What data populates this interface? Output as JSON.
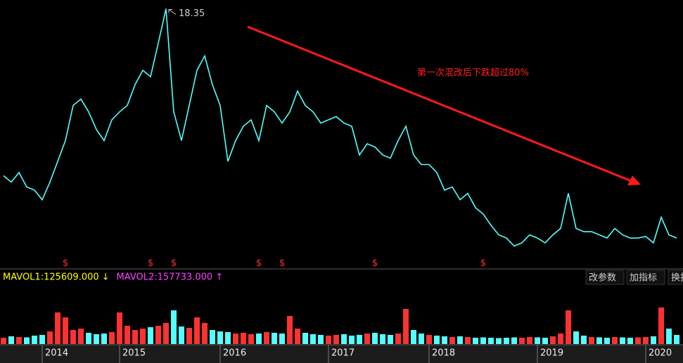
{
  "chart_data": [
    {
      "type": "line",
      "color": "#54ffff",
      "values": [
        7.9,
        7.5,
        8.1,
        7.2,
        7.0,
        6.4,
        7.5,
        8.8,
        10.1,
        12.3,
        12.7,
        11.9,
        10.8,
        10.1,
        11.4,
        11.9,
        12.3,
        13.6,
        14.5,
        14.1,
        16.2,
        18.35,
        11.9,
        10.1,
        12.3,
        14.5,
        15.4,
        13.6,
        12.3,
        8.8,
        10.1,
        11.0,
        11.4,
        10.1,
        12.3,
        11.9,
        11.2,
        11.9,
        13.2,
        12.3,
        11.9,
        11.2,
        11.4,
        11.6,
        11.2,
        11.0,
        9.2,
        9.9,
        9.7,
        9.2,
        9.0,
        10.1,
        11.0,
        9.2,
        8.6,
        8.6,
        8.1,
        7.0,
        7.2,
        6.4,
        6.8,
        5.9,
        5.5,
        4.8,
        4.2,
        4.0,
        3.5,
        3.7,
        4.2,
        4.0,
        3.7,
        4.2,
        4.6,
        6.8,
        4.6,
        4.4,
        4.4,
        4.2,
        4.0,
        4.6,
        4.2,
        4.0,
        4.0,
        4.1,
        3.7,
        5.3,
        4.2,
        4.0
      ],
      "ylim": [
        2.2,
        18.9
      ],
      "annotation": "第一次混改后下跌超过80%",
      "annotation_color": "#ff2020",
      "markers": [
        {
          "label": "$",
          "at": 8
        },
        {
          "label": "$",
          "at": 19
        },
        {
          "label": "$",
          "at": 22
        },
        {
          "label": "$",
          "at": 33
        },
        {
          "label": "$",
          "at": 36
        },
        {
          "label": "$",
          "at": 48
        },
        {
          "label": "$",
          "at": 62
        }
      ]
    },
    {
      "type": "bar",
      "up_color": "#ff3232",
      "down_color": "#54ffff",
      "categories": [
        null,
        null,
        null,
        null,
        null,
        "2014",
        null,
        null,
        null,
        null,
        null,
        null,
        null,
        null,
        null,
        "2015",
        null,
        null,
        null,
        null,
        null,
        null,
        null,
        null,
        null,
        null,
        null,
        null,
        "2016",
        null,
        null,
        null,
        null,
        null,
        null,
        null,
        null,
        null,
        null,
        null,
        null,
        null,
        "2017",
        null,
        null,
        null,
        null,
        null,
        null,
        null,
        null,
        null,
        null,
        null,
        null,
        "2018",
        null,
        null,
        null,
        null,
        null,
        null,
        null,
        null,
        null,
        null,
        null,
        null,
        null,
        "2019",
        null,
        null,
        null,
        null,
        null,
        null,
        null,
        null,
        null,
        null,
        null,
        null,
        null,
        "2020",
        null,
        null,
        null,
        null
      ],
      "values": [
        90000,
        110000,
        100000,
        95000,
        120000,
        130000,
        180000,
        450000,
        380000,
        200000,
        220000,
        160000,
        140000,
        150000,
        170000,
        450000,
        260000,
        200000,
        220000,
        240000,
        260000,
        300000,
        480000,
        250000,
        230000,
        380000,
        300000,
        200000,
        180000,
        170000,
        150000,
        160000,
        140000,
        150000,
        170000,
        160000,
        150000,
        400000,
        220000,
        160000,
        140000,
        130000,
        120000,
        130000,
        140000,
        120000,
        130000,
        150000,
        160000,
        140000,
        130000,
        150000,
        500000,
        200000,
        150000,
        130000,
        120000,
        110000,
        100000,
        110000,
        100000,
        90000,
        95000,
        90000,
        85000,
        90000,
        95000,
        90000,
        100000,
        95000,
        90000,
        110000,
        150000,
        480000,
        180000,
        120000,
        100000,
        95000,
        90000,
        100000,
        95000,
        90000,
        95000,
        100000,
        110000,
        520000,
        220000,
        130000
      ],
      "ylim": [
        0,
        700000
      ],
      "indicators": [
        {
          "label": "MAVOL1:125609.000",
          "arrow": "↓",
          "color": "#ffff00"
        },
        {
          "label": "MAVOL2:157733.000",
          "arrow": "↑",
          "color": "#ff40ff"
        }
      ],
      "buttons": [
        "改参数",
        "加指标",
        "换指标"
      ]
    }
  ]
}
